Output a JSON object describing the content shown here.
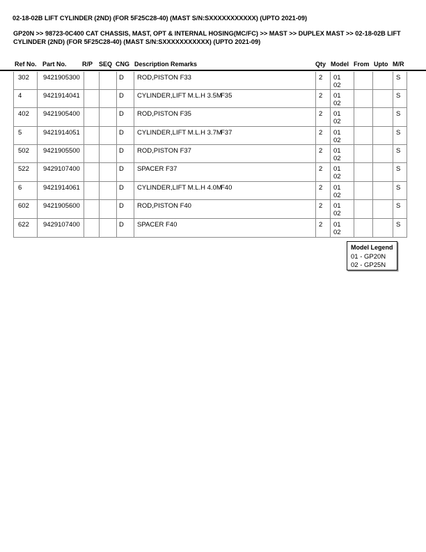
{
  "page": {
    "title": "02-18-02B LIFT CYLINDER (2ND) (FOR 5F25C28-40) (MAST S/N:SXXXXXXXXXXX) (UPTO 2021-09)",
    "breadcrumb_lines": [
      "GP20N >> 98723-0C400 CAT CHASSIS, MAST, OPT & INTERNAL HOSING(MC/FC) >> MAST >> DUPLEX MAST >> 02-18-02B LIFT",
      "CYLINDER (2ND) (FOR 5F25C28-40) (MAST S/N:SXXXXXXXXXXX) (UPTO 2021-09)"
    ]
  },
  "table": {
    "headers": [
      "Ref No.",
      "Part No.",
      "R/P",
      "SEQ",
      "CNG",
      "Description Remarks",
      "Qty",
      "Model",
      "From",
      "Upto",
      "M/R"
    ],
    "rows": [
      {
        "ref": "302",
        "part": "9421905300",
        "rp": "",
        "seq": "",
        "cng": "D",
        "desc": "ROD,PISTON F33",
        "remark": "",
        "qty": "2",
        "model": [
          "01",
          "02"
        ],
        "from": "",
        "upto": "",
        "mr": "S"
      },
      {
        "ref": "4",
        "part": "9421914041",
        "rp": "",
        "seq": "",
        "cng": "D",
        "desc": "CYLINDER,LIFT M.L.H 3.5M",
        "remark": "F35",
        "qty": "2",
        "model": [
          "01",
          "02"
        ],
        "from": "",
        "upto": "",
        "mr": "S"
      },
      {
        "ref": "402",
        "part": "9421905400",
        "rp": "",
        "seq": "",
        "cng": "D",
        "desc": "ROD,PISTON F35",
        "remark": "",
        "qty": "2",
        "model": [
          "01",
          "02"
        ],
        "from": "",
        "upto": "",
        "mr": "S"
      },
      {
        "ref": "5",
        "part": "9421914051",
        "rp": "",
        "seq": "",
        "cng": "D",
        "desc": "CYLINDER,LIFT M.L.H 3.7M",
        "remark": "F37",
        "qty": "2",
        "model": [
          "01",
          "02"
        ],
        "from": "",
        "upto": "",
        "mr": "S"
      },
      {
        "ref": "502",
        "part": "9421905500",
        "rp": "",
        "seq": "",
        "cng": "D",
        "desc": "ROD,PISTON F37",
        "remark": "",
        "qty": "2",
        "model": [
          "01",
          "02"
        ],
        "from": "",
        "upto": "",
        "mr": "S"
      },
      {
        "ref": "522",
        "part": "9429107400",
        "rp": "",
        "seq": "",
        "cng": "D",
        "desc": "SPACER F37",
        "remark": "",
        "qty": "2",
        "model": [
          "01",
          "02"
        ],
        "from": "",
        "upto": "",
        "mr": "S"
      },
      {
        "ref": "6",
        "part": "9421914061",
        "rp": "",
        "seq": "",
        "cng": "D",
        "desc": "CYLINDER,LIFT M.L.H 4.0M",
        "remark": "F40",
        "qty": "2",
        "model": [
          "01",
          "02"
        ],
        "from": "",
        "upto": "",
        "mr": "S"
      },
      {
        "ref": "602",
        "part": "9421905600",
        "rp": "",
        "seq": "",
        "cng": "D",
        "desc": "ROD,PISTON F40",
        "remark": "",
        "qty": "2",
        "model": [
          "01",
          "02"
        ],
        "from": "",
        "upto": "",
        "mr": "S"
      },
      {
        "ref": "622",
        "part": "9429107400",
        "rp": "",
        "seq": "",
        "cng": "D",
        "desc": "SPACER F40",
        "remark": "",
        "qty": "2",
        "model": [
          "01",
          "02"
        ],
        "from": "",
        "upto": "",
        "mr": "S"
      }
    ]
  },
  "legend": {
    "title": "Model Legend",
    "items": [
      "01 - GP20N",
      "02 - GP25N"
    ]
  },
  "colors": {
    "text": "#000000",
    "table_border": "#8a8a8a",
    "rule": "#000000",
    "page_bg": "#ffffff"
  }
}
